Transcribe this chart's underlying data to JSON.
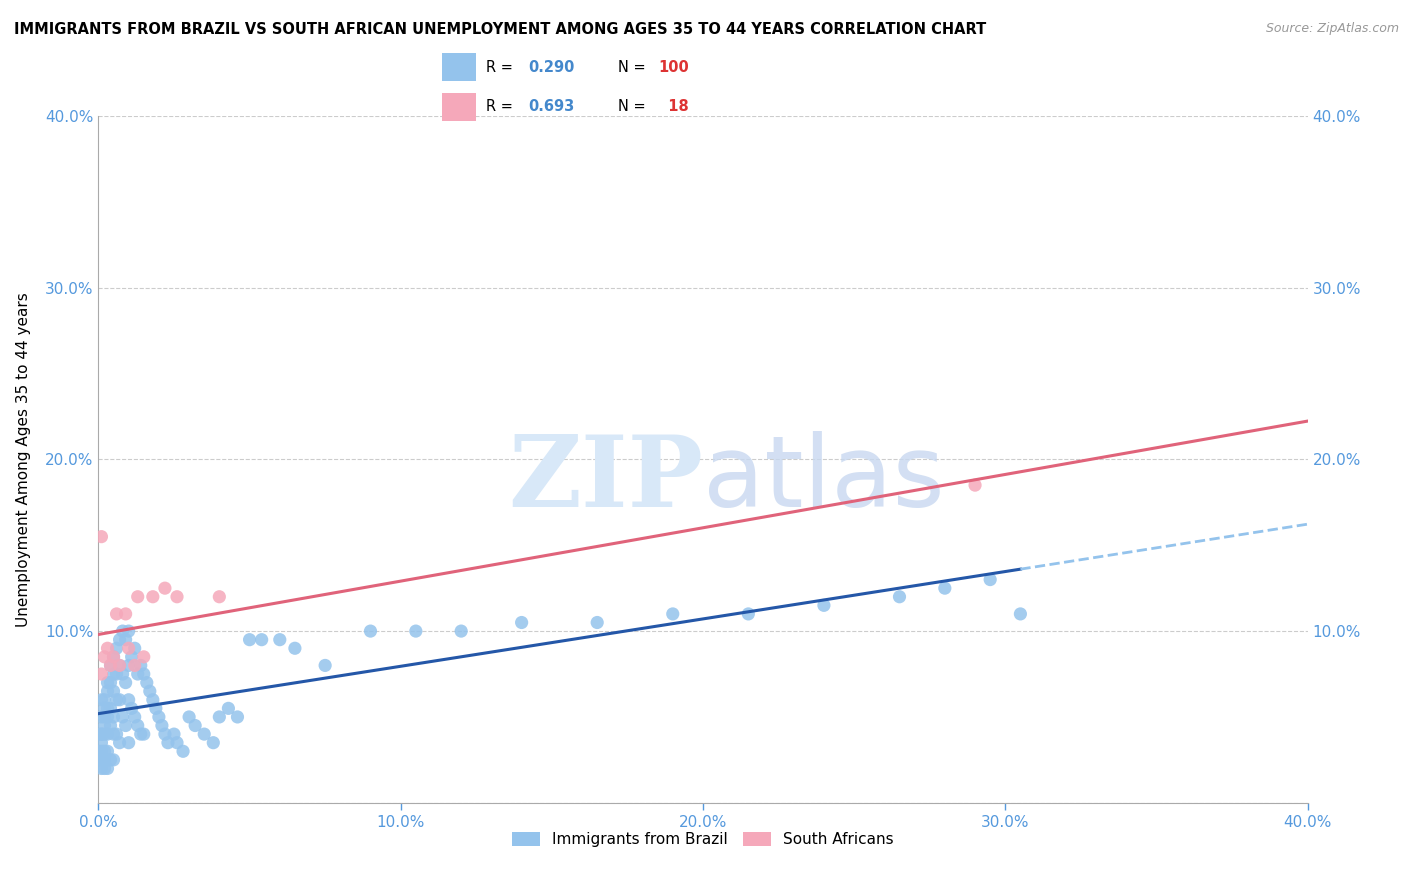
{
  "title": "IMMIGRANTS FROM BRAZIL VS SOUTH AFRICAN UNEMPLOYMENT AMONG AGES 35 TO 44 YEARS CORRELATION CHART",
  "source": "Source: ZipAtlas.com",
  "ylabel": "Unemployment Among Ages 35 to 44 years",
  "xlim": [
    0.0,
    0.4
  ],
  "ylim": [
    0.0,
    0.4
  ],
  "xticks": [
    0.0,
    0.1,
    0.2,
    0.3,
    0.4
  ],
  "yticks": [
    0.0,
    0.1,
    0.2,
    0.3,
    0.4
  ],
  "brazil_color": "#94C3EC",
  "sa_color": "#F5A8BA",
  "trendline_brazil_color": "#2457A8",
  "trendline_sa_color": "#E0637A",
  "trendline_ext_color": "#94C3EC",
  "R_brazil": 0.29,
  "N_brazil": 100,
  "R_sa": 0.693,
  "N_sa": 18,
  "brazil_x": [
    0.0,
    0.0,
    0.001,
    0.001,
    0.001,
    0.001,
    0.001,
    0.001,
    0.001,
    0.001,
    0.001,
    0.002,
    0.002,
    0.002,
    0.002,
    0.002,
    0.002,
    0.002,
    0.002,
    0.003,
    0.003,
    0.003,
    0.003,
    0.003,
    0.003,
    0.003,
    0.004,
    0.004,
    0.004,
    0.004,
    0.004,
    0.005,
    0.005,
    0.005,
    0.005,
    0.005,
    0.005,
    0.006,
    0.006,
    0.006,
    0.006,
    0.007,
    0.007,
    0.007,
    0.007,
    0.008,
    0.008,
    0.008,
    0.009,
    0.009,
    0.009,
    0.01,
    0.01,
    0.01,
    0.01,
    0.011,
    0.011,
    0.012,
    0.012,
    0.013,
    0.013,
    0.014,
    0.014,
    0.015,
    0.015,
    0.016,
    0.017,
    0.018,
    0.019,
    0.02,
    0.021,
    0.022,
    0.023,
    0.025,
    0.026,
    0.028,
    0.03,
    0.032,
    0.035,
    0.038,
    0.04,
    0.043,
    0.046,
    0.05,
    0.054,
    0.06,
    0.065,
    0.075,
    0.09,
    0.105,
    0.12,
    0.14,
    0.165,
    0.19,
    0.215,
    0.24,
    0.265,
    0.28,
    0.295,
    0.305
  ],
  "brazil_y": [
    0.04,
    0.03,
    0.06,
    0.05,
    0.04,
    0.04,
    0.035,
    0.03,
    0.025,
    0.025,
    0.02,
    0.06,
    0.055,
    0.05,
    0.045,
    0.04,
    0.03,
    0.025,
    0.02,
    0.07,
    0.065,
    0.055,
    0.05,
    0.04,
    0.03,
    0.02,
    0.08,
    0.07,
    0.055,
    0.045,
    0.025,
    0.085,
    0.075,
    0.065,
    0.05,
    0.04,
    0.025,
    0.09,
    0.075,
    0.06,
    0.04,
    0.095,
    0.08,
    0.06,
    0.035,
    0.1,
    0.075,
    0.05,
    0.095,
    0.07,
    0.045,
    0.1,
    0.08,
    0.06,
    0.035,
    0.085,
    0.055,
    0.09,
    0.05,
    0.075,
    0.045,
    0.08,
    0.04,
    0.075,
    0.04,
    0.07,
    0.065,
    0.06,
    0.055,
    0.05,
    0.045,
    0.04,
    0.035,
    0.04,
    0.035,
    0.03,
    0.05,
    0.045,
    0.04,
    0.035,
    0.05,
    0.055,
    0.05,
    0.095,
    0.095,
    0.095,
    0.09,
    0.08,
    0.1,
    0.1,
    0.1,
    0.105,
    0.105,
    0.11,
    0.11,
    0.115,
    0.12,
    0.125,
    0.13,
    0.11
  ],
  "sa_x": [
    0.001,
    0.001,
    0.002,
    0.003,
    0.004,
    0.005,
    0.006,
    0.007,
    0.009,
    0.01,
    0.012,
    0.013,
    0.015,
    0.018,
    0.022,
    0.026,
    0.04,
    0.29
  ],
  "sa_y": [
    0.155,
    0.075,
    0.085,
    0.09,
    0.08,
    0.085,
    0.11,
    0.08,
    0.11,
    0.09,
    0.08,
    0.12,
    0.085,
    0.12,
    0.125,
    0.12,
    0.12,
    0.185
  ],
  "background_color": "#FFFFFF",
  "grid_color": "#CCCCCC",
  "tick_color": "#5599DD",
  "marker_size": 90
}
